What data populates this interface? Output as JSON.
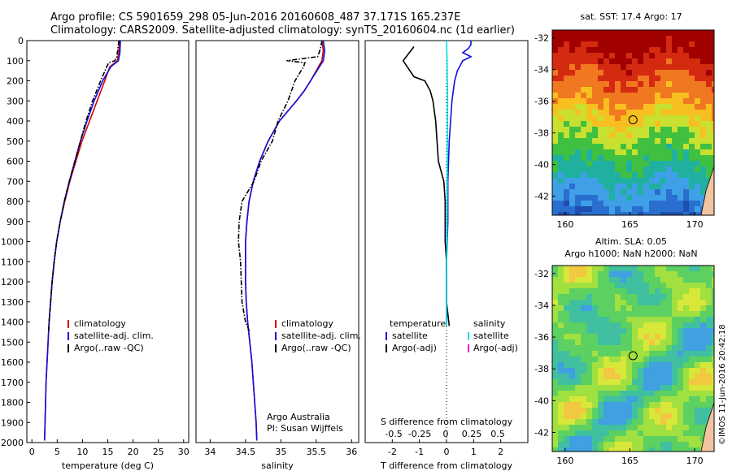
{
  "header": {
    "line1": "Argo profile: CS 5901659_298 05-Jun-2016 20160608_487 37.171S 165.237E",
    "line2": "Climatology: CARS2009. Satellite-adjusted climatology: synTS_20160604.nc (1d earlier)"
  },
  "side_label": "©IMOS 11-Jun-2016 20:42:18",
  "colors": {
    "climatology": "#d00000",
    "satellite": "#1010e0",
    "argo": "#000000",
    "salinity_sat": "#00e0e0",
    "salinity_argo": "#e020e0"
  },
  "chart_data": [
    {
      "type": "line",
      "id": "temperature",
      "xlabel": "temperature (deg C)",
      "xlim": [
        -1,
        31
      ],
      "ylim": [
        2000,
        0
      ],
      "xticks": [
        0,
        5,
        10,
        15,
        20,
        25,
        30
      ],
      "yticks": [
        0,
        100,
        200,
        300,
        400,
        500,
        600,
        700,
        800,
        900,
        1000,
        1100,
        1200,
        1300,
        1400,
        1500,
        1600,
        1700,
        1800,
        1900,
        2000
      ],
      "legend": [
        "climatology",
        "satellite-adj. clim.",
        "Argo(..raw -QC)"
      ],
      "series": [
        {
          "name": "climatology",
          "depth": [
            0,
            60,
            100,
            130,
            200,
            300,
            400,
            500,
            600,
            700,
            800,
            900,
            1000,
            1100,
            1200,
            1300,
            1400,
            1500,
            1600,
            1700,
            1800,
            1900,
            1990
          ],
          "values": [
            17.3,
            17.2,
            16.9,
            15.4,
            14.4,
            12.9,
            11.4,
            9.9,
            8.7,
            7.5,
            6.5,
            5.6,
            4.9,
            4.4,
            4.0,
            3.7,
            3.4,
            3.2,
            3.0,
            2.8,
            2.7,
            2.6,
            2.5
          ]
        },
        {
          "name": "satellite-adj. clim.",
          "depth": [
            0,
            60,
            100,
            130,
            200,
            300,
            400,
            500,
            600,
            700,
            800,
            900,
            1000,
            1100,
            1200,
            1300,
            1400,
            1500,
            1600,
            1700,
            1800,
            1900,
            1990
          ],
          "values": [
            17.5,
            17.4,
            17.1,
            15.6,
            14.0,
            12.3,
            10.9,
            9.6,
            8.5,
            7.4,
            6.4,
            5.6,
            4.9,
            4.4,
            4.0,
            3.7,
            3.4,
            3.2,
            3.0,
            2.8,
            2.7,
            2.6,
            2.5
          ]
        },
        {
          "name": "Argo(..raw -QC)",
          "depth": [
            0,
            40,
            80,
            100,
            110,
            130,
            200,
            300,
            400,
            500,
            600,
            700,
            800,
            900,
            1000,
            1100,
            1200,
            1300,
            1400,
            1450
          ],
          "values": [
            17.2,
            17.0,
            16.8,
            16.4,
            15.2,
            14.8,
            13.6,
            12.0,
            10.7,
            9.6,
            8.5,
            7.4,
            6.4,
            5.6,
            4.9,
            4.4,
            4.0,
            3.7,
            3.4,
            3.3
          ]
        }
      ]
    },
    {
      "type": "line",
      "id": "salinity",
      "xlabel": "salinity",
      "xlim": [
        33.8,
        36.1
      ],
      "ylim": [
        2000,
        0
      ],
      "xticks": [
        34,
        34.5,
        35,
        35.5,
        36
      ],
      "legend": [
        "climatology",
        "satellite-adj. clim.",
        "Argo(..raw -QC)"
      ],
      "annotation": [
        "Argo Australia",
        "PI: Susan Wijffels"
      ],
      "series": [
        {
          "name": "climatology",
          "depth": [
            0,
            50,
            100,
            150,
            200,
            250,
            300,
            350,
            400,
            500,
            600,
            700,
            800,
            900,
            1000,
            1100,
            1200,
            1300,
            1400,
            1500,
            1600,
            1700,
            1800,
            1900,
            1990
          ],
          "values": [
            35.58,
            35.6,
            35.58,
            35.5,
            35.42,
            35.33,
            35.22,
            35.1,
            34.98,
            34.82,
            34.7,
            34.61,
            34.55,
            34.52,
            34.5,
            34.5,
            34.5,
            34.51,
            34.53,
            34.56,
            34.59,
            34.61,
            34.63,
            34.65,
            34.66
          ]
        },
        {
          "name": "satellite-adj. clim.",
          "depth": [
            0,
            50,
            100,
            150,
            200,
            250,
            300,
            350,
            400,
            500,
            600,
            700,
            800,
            900,
            1000,
            1100,
            1200,
            1300,
            1400,
            1500,
            1600,
            1700,
            1800,
            1900,
            1990
          ],
          "values": [
            35.6,
            35.62,
            35.6,
            35.51,
            35.42,
            35.33,
            35.22,
            35.1,
            34.98,
            34.82,
            34.7,
            34.61,
            34.55,
            34.52,
            34.5,
            34.5,
            34.5,
            34.51,
            34.53,
            34.56,
            34.59,
            34.61,
            34.63,
            34.65,
            34.66
          ]
        },
        {
          "name": "Argo(..raw -QC)",
          "depth": [
            0,
            40,
            80,
            100,
            110,
            130,
            200,
            300,
            400,
            500,
            600,
            700,
            800,
            900,
            1000,
            1100,
            1200,
            1300,
            1400,
            1450
          ],
          "values": [
            35.58,
            35.56,
            35.52,
            35.08,
            35.34,
            35.32,
            35.2,
            35.1,
            34.96,
            34.88,
            34.72,
            34.62,
            34.45,
            34.41,
            34.4,
            34.43,
            34.44,
            34.45,
            34.5,
            34.56
          ]
        }
      ]
    },
    {
      "type": "line",
      "id": "difference",
      "xlabel": "T difference from climatology",
      "xlabel_top": "S difference from climatology",
      "xlim": [
        -3,
        3
      ],
      "ylim": [
        2000,
        0
      ],
      "xticks": [
        -2,
        -1,
        0,
        1,
        2
      ],
      "sticks": [
        "-0.5",
        "-0.25",
        "0",
        "0.25",
        "0.5"
      ],
      "legend_t": [
        "temperature",
        "satellite",
        "Argo(-adj)"
      ],
      "legend_s": [
        "salinity",
        "satellite",
        "Argo(-adj)"
      ],
      "series": [
        {
          "name": "temperature satellite",
          "depth": [
            0,
            20,
            40,
            60,
            80,
            100,
            150,
            200,
            300,
            400,
            500,
            700,
            900,
            1100,
            1300,
            1420
          ],
          "values": [
            0.9,
            0.9,
            0.8,
            0.6,
            0.9,
            0.6,
            0.4,
            0.3,
            0.2,
            0.15,
            0.1,
            0.05,
            0.05,
            0.0,
            0.0,
            0.0
          ]
        },
        {
          "name": "temperature Argo(-adj)",
          "depth": [
            30,
            100,
            120,
            180,
            200,
            250,
            300,
            400,
            500,
            600,
            700,
            800,
            900,
            1000,
            1100,
            1200,
            1300,
            1420
          ],
          "values": [
            -1.2,
            -1.6,
            -1.5,
            -1.2,
            -0.8,
            -0.6,
            -0.5,
            -0.4,
            -0.35,
            -0.3,
            -0.1,
            -0.05,
            -0.05,
            -0.05,
            0.0,
            0.0,
            0.0,
            0.1
          ]
        },
        {
          "name": "salinity satellite",
          "depth": [
            0,
            100,
            300,
            600,
            900,
            1200,
            1420
          ],
          "values": [
            0.0,
            0.02,
            0.04,
            0.03,
            0.02,
            0.0,
            0.0
          ]
        }
      ]
    },
    {
      "type": "heatmap",
      "id": "sst_map",
      "title": "sat. SST: 17.4  Argo: 17",
      "xticks": [
        160,
        165,
        170
      ],
      "yticks": [
        -32,
        -34,
        -36,
        -38,
        -40,
        -42
      ],
      "xlim": [
        159,
        171.5
      ],
      "ylim": [
        -43.2,
        -31.5
      ],
      "marker": {
        "lon": 165.237,
        "lat": -37.171
      }
    },
    {
      "type": "heatmap",
      "id": "sla_map",
      "title": "Altim. SLA: 0.05",
      "subtitle": "Argo h1000: NaN h2000: NaN",
      "xticks": [
        160,
        165,
        170
      ],
      "yticks": [
        -32,
        -34,
        -36,
        -38,
        -40,
        -42
      ],
      "xlim": [
        159,
        171.5
      ],
      "ylim": [
        -43.2,
        -31.5
      ],
      "marker": {
        "lon": 165.237,
        "lat": -37.171
      }
    }
  ]
}
